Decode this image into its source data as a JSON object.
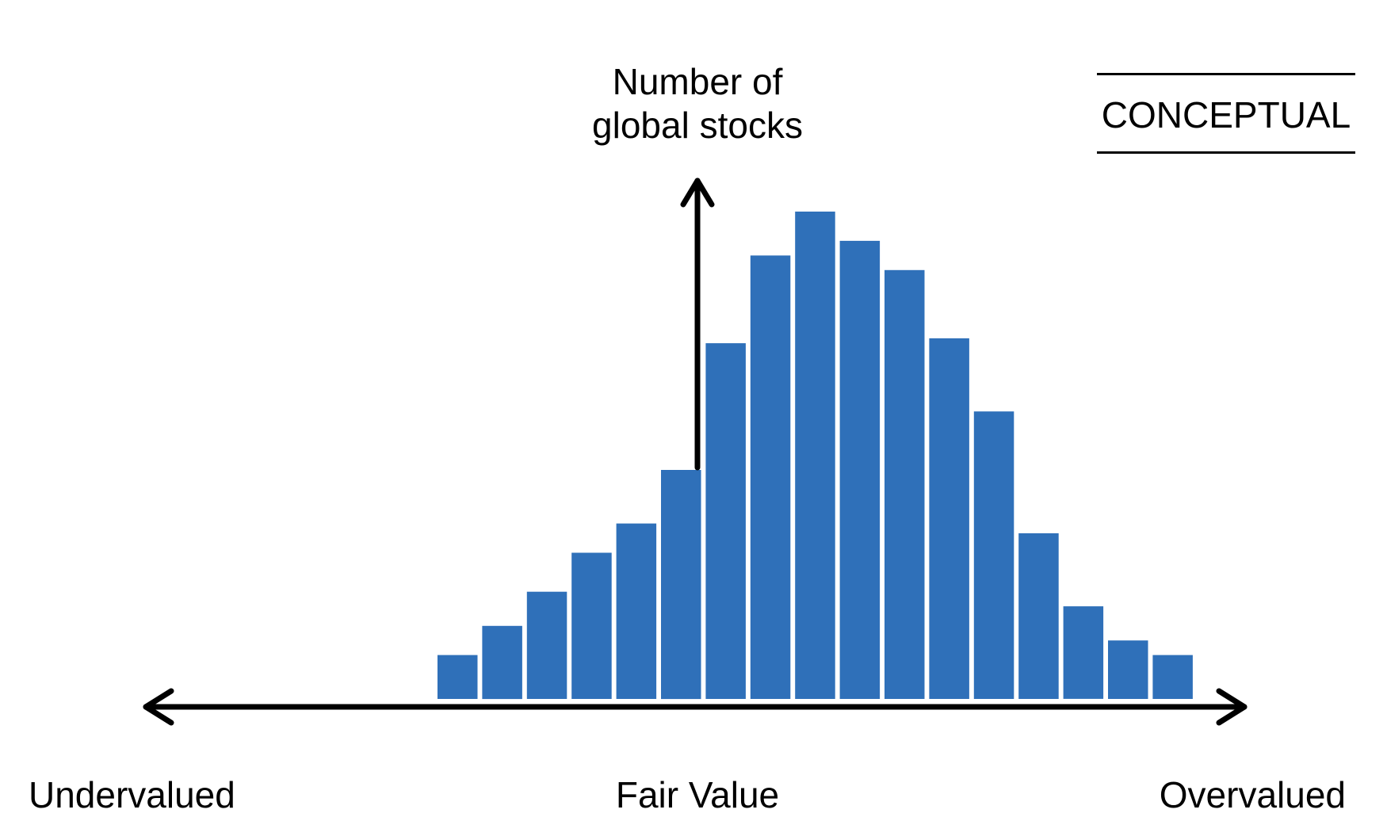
{
  "chart_data": {
    "type": "bar",
    "title": "",
    "ylabel_lines": [
      "Number of",
      "global stocks"
    ],
    "stamp": "CONCEPTUAL",
    "x_labels": {
      "left": "Undervalued",
      "center": "Fair Value",
      "right": "Overvalued"
    },
    "values": [
      9,
      15,
      22,
      30,
      36,
      47,
      73,
      91,
      100,
      94,
      88,
      74,
      59,
      34,
      19,
      12,
      9
    ],
    "ylim": [
      0,
      100
    ],
    "grid": false,
    "legend": "none",
    "bar_color": "#2F70B9"
  }
}
